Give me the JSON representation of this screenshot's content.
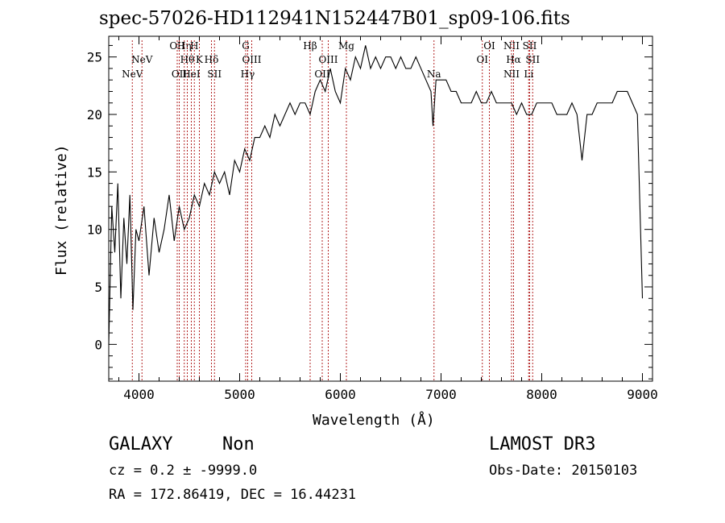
{
  "chart_data": {
    "type": "line",
    "title": "spec-57026-HD112941N152447B01_sp09-106.fits",
    "xlabel": "Wavelength (Å)",
    "ylabel": "Flux (relative)",
    "xlim": [
      3700,
      9100
    ],
    "ylim": [
      -3.2,
      26.8
    ],
    "xticks": [
      4000,
      5000,
      6000,
      7000,
      8000,
      9000
    ],
    "yticks": [
      0,
      5,
      10,
      15,
      20,
      25
    ],
    "grid": false,
    "line_color": "#000000",
    "marker_color": "#b22222",
    "series": [
      {
        "x": [
          3700,
          3730,
          3760,
          3790,
          3820,
          3850,
          3880,
          3910,
          3940,
          3970,
          4000,
          4050,
          4100,
          4150,
          4200,
          4250,
          4300,
          4350,
          4400,
          4450,
          4500,
          4550,
          4600,
          4650,
          4700,
          4750,
          4800,
          4850,
          4900,
          4950,
          5000,
          5050,
          5100,
          5150,
          5200,
          5250,
          5300,
          5350,
          5400,
          5450,
          5500,
          5550,
          5600,
          5650,
          5700,
          5750,
          5800,
          5850,
          5900,
          5950,
          6000,
          6050,
          6100,
          6150,
          6200,
          6250,
          6300,
          6350,
          6400,
          6450,
          6500,
          6550,
          6600,
          6650,
          6700,
          6750,
          6800,
          6850,
          6900,
          6920,
          6950,
          7000,
          7050,
          7100,
          7150,
          7200,
          7250,
          7300,
          7350,
          7400,
          7450,
          7500,
          7550,
          7600,
          7650,
          7700,
          7750,
          7800,
          7850,
          7900,
          7950,
          8000,
          8050,
          8100,
          8150,
          8200,
          8250,
          8300,
          8350,
          8400,
          8450,
          8500,
          8550,
          8600,
          8650,
          8700,
          8750,
          8800,
          8850,
          8900,
          8950,
          9000
        ],
        "y": [
          0,
          12,
          8,
          14,
          4,
          11,
          7,
          13,
          3,
          10,
          9,
          12,
          6,
          11,
          8,
          10,
          13,
          9,
          12,
          10,
          11,
          13,
          12,
          14,
          13,
          15,
          14,
          15,
          13,
          16,
          15,
          17,
          16,
          18,
          18,
          19,
          18,
          20,
          19,
          20,
          21,
          20,
          21,
          21,
          20,
          22,
          23,
          22,
          24,
          22,
          21,
          24,
          23,
          25,
          24,
          26,
          24,
          25,
          24,
          25,
          25,
          24,
          25,
          24,
          24,
          25,
          24,
          23,
          22,
          19,
          23,
          23,
          23,
          22,
          22,
          21,
          21,
          21,
          22,
          21,
          21,
          22,
          21,
          21,
          21,
          21,
          20,
          21,
          20,
          20,
          21,
          21,
          21,
          21,
          20,
          20,
          20,
          21,
          20,
          16,
          20,
          20,
          21,
          21,
          21,
          21,
          22,
          22,
          22,
          21,
          20,
          4
        ]
      }
    ],
    "lines": [
      {
        "label": "NeV",
        "x": 3934,
        "row": 2
      },
      {
        "label": "NeV",
        "x": 4030,
        "row": 1
      },
      {
        "label": "OII",
        "x": 4380,
        "row": 0
      },
      {
        "label": "Hη",
        "x": 4450,
        "row": 0
      },
      {
        "label": "H",
        "x": 4550,
        "row": 0
      },
      {
        "label": "OII",
        "x": 4400,
        "row": 2
      },
      {
        "label": "Hθ",
        "x": 4480,
        "row": 1
      },
      {
        "label": "K",
        "x": 4600,
        "row": 1
      },
      {
        "label": "HeI",
        "x": 4520,
        "row": 2
      },
      {
        "label": "Hδ",
        "x": 4720,
        "row": 1
      },
      {
        "label": "SII",
        "x": 4750,
        "row": 2
      },
      {
        "label": "G",
        "x": 5060,
        "row": 0
      },
      {
        "label": "OIII",
        "x": 5120,
        "row": 1
      },
      {
        "label": "Hγ",
        "x": 5080,
        "row": 2
      },
      {
        "label": "Hβ",
        "x": 5700,
        "row": 0
      },
      {
        "label": "Mg",
        "x": 6060,
        "row": 0
      },
      {
        "label": "OIII",
        "x": 5880,
        "row": 1
      },
      {
        "label": "OII",
        "x": 5820,
        "row": 2
      },
      {
        "label": "Na",
        "x": 6930,
        "row": 2
      },
      {
        "label": "OI",
        "x": 7480,
        "row": 0
      },
      {
        "label": "OI",
        "x": 7410,
        "row": 1
      },
      {
        "label": "NII",
        "x": 7700,
        "row": 0
      },
      {
        "label": "SII",
        "x": 7880,
        "row": 0
      },
      {
        "label": "Hα",
        "x": 7720,
        "row": 1
      },
      {
        "label": "SII",
        "x": 7910,
        "row": 1
      },
      {
        "label": "NII",
        "x": 7700,
        "row": 2
      },
      {
        "label": "Li",
        "x": 7870,
        "row": 2
      }
    ]
  },
  "info": {
    "class": "GALAXY",
    "subclass": "Non",
    "survey": "LAMOST DR3",
    "cz": "cz = 0.2 ± -9999.0",
    "obs_date": "Obs-Date: 20150103",
    "coords": "RA = 172.86419, DEC =  16.44231"
  }
}
